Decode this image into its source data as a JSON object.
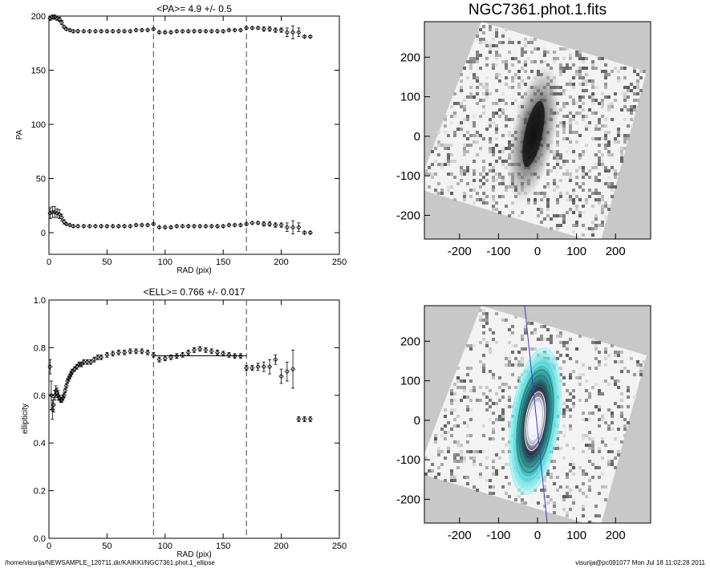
{
  "footer": {
    "left": "/home/visurija/NEWSAMPLE_120711.dir/KAIKKI/NGC7361.phot.1_ellipse",
    "right": "visurija@pc091077  Mon Jul 18 11:02:28 2011"
  },
  "image_panel": {
    "title": "NGC7361.phot.1.fits"
  },
  "chart_data": [
    {
      "type": "scatter",
      "title": "<PA>=   4.9 +/-   0.5",
      "xlabel": "RAD (pix)",
      "ylabel": "PA",
      "xlim": [
        0,
        250
      ],
      "ylim": [
        -20,
        200
      ],
      "xticks": [
        "0",
        "50",
        "100",
        "150",
        "200",
        "250"
      ],
      "yticks": [
        "0",
        "50",
        "100",
        "150",
        "200"
      ],
      "vlines": [
        90,
        170
      ],
      "series": [
        {
          "x": [
            1,
            3,
            5,
            7,
            9,
            11,
            13,
            15,
            18,
            21,
            25,
            30,
            35,
            40,
            45,
            50,
            55,
            60,
            65,
            70,
            75,
            80,
            85,
            90,
            95,
            100,
            105,
            110,
            115,
            120,
            125,
            130,
            135,
            140,
            145,
            150,
            155,
            160,
            165,
            170,
            175,
            180,
            185,
            190,
            195,
            200,
            205,
            210,
            215,
            220,
            225
          ],
          "y": [
            198,
            199,
            199,
            198,
            197,
            194,
            190,
            188,
            187,
            186,
            186,
            186,
            186,
            186,
            186,
            186,
            186,
            186,
            186,
            186,
            187,
            187,
            187,
            188,
            185,
            185,
            185,
            186,
            186,
            186,
            186,
            186,
            186,
            186,
            186,
            186,
            187,
            187,
            187,
            189,
            189,
            189,
            188,
            188,
            187,
            187,
            185,
            185,
            185,
            181,
            181
          ],
          "err": [
            2,
            2,
            2,
            2,
            2,
            2,
            1,
            1,
            1,
            1,
            1,
            1,
            1,
            1,
            1,
            1,
            1,
            1,
            1,
            1,
            1,
            1,
            1,
            1,
            1,
            1,
            1,
            1,
            1,
            1,
            1,
            1,
            1,
            1,
            1,
            1,
            1,
            1,
            1,
            1,
            1,
            1,
            2,
            2,
            2,
            2,
            4,
            6,
            4,
            1,
            1
          ]
        },
        {
          "x": [
            1,
            3,
            5,
            7,
            9,
            11,
            13,
            15,
            18,
            21,
            25,
            30,
            35,
            40,
            45,
            50,
            55,
            60,
            65,
            70,
            75,
            80,
            85,
            90,
            95,
            100,
            105,
            110,
            115,
            120,
            125,
            130,
            135,
            140,
            145,
            150,
            155,
            160,
            165,
            170,
            175,
            180,
            185,
            190,
            195,
            200,
            205,
            210,
            215,
            220,
            225
          ],
          "y": [
            18,
            19,
            19,
            18,
            17,
            14,
            10,
            8,
            7,
            6,
            6,
            6,
            6,
            6,
            6,
            6,
            6,
            6,
            6,
            6,
            7,
            7,
            7,
            8,
            5,
            5,
            5,
            6,
            6,
            6,
            6,
            6,
            6,
            6,
            6,
            6,
            7,
            7,
            7,
            8,
            9,
            9,
            8,
            8,
            7,
            7,
            5,
            5,
            5,
            0,
            0
          ],
          "err": [
            5,
            5,
            5,
            4,
            4,
            3,
            2,
            1,
            1,
            1,
            1,
            1,
            1,
            1,
            1,
            1,
            1,
            1,
            1,
            1,
            1,
            1,
            1,
            1,
            1,
            1,
            1,
            1,
            1,
            1,
            1,
            1,
            1,
            1,
            1,
            1,
            1,
            1,
            1,
            1,
            1,
            1,
            2,
            2,
            2,
            2,
            4,
            6,
            4,
            1,
            1
          ]
        }
      ]
    },
    {
      "type": "scatter",
      "title": "<ELL>= 0.766 +/-  0.017",
      "xlabel": "RAD (pix)",
      "ylabel": "ellipticity",
      "xlim": [
        0,
        250
      ],
      "ylim": [
        0,
        1
      ],
      "xticks": [
        "0",
        "50",
        "100",
        "150",
        "200",
        "250"
      ],
      "yticks": [
        "0.0",
        "0.2",
        "0.4",
        "0.6",
        "0.8",
        "1.0"
      ],
      "vlines": [
        90,
        170
      ],
      "hline": {
        "value": 0.766,
        "from": 90,
        "to": 170
      },
      "series": [
        {
          "x": [
            1,
            2,
            3,
            4,
            5,
            6,
            7,
            8,
            9,
            10,
            11,
            12,
            13,
            14,
            15,
            16,
            17,
            18,
            19,
            20,
            22,
            24,
            26,
            28,
            30,
            33,
            36,
            39,
            42,
            45,
            50,
            55,
            60,
            65,
            70,
            75,
            80,
            85,
            90,
            95,
            100,
            105,
            110,
            115,
            120,
            125,
            130,
            135,
            140,
            145,
            150,
            155,
            160,
            165,
            170,
            175,
            180,
            185,
            190,
            195,
            200,
            205,
            210,
            215,
            220,
            225
          ],
          "y": [
            0.72,
            0.6,
            0.54,
            0.56,
            0.6,
            0.62,
            0.61,
            0.6,
            0.59,
            0.58,
            0.58,
            0.59,
            0.6,
            0.62,
            0.64,
            0.66,
            0.67,
            0.68,
            0.69,
            0.7,
            0.71,
            0.72,
            0.73,
            0.73,
            0.74,
            0.74,
            0.74,
            0.75,
            0.76,
            0.76,
            0.77,
            0.775,
            0.78,
            0.78,
            0.785,
            0.785,
            0.785,
            0.78,
            0.77,
            0.75,
            0.755,
            0.76,
            0.765,
            0.77,
            0.78,
            0.79,
            0.795,
            0.79,
            0.785,
            0.78,
            0.775,
            0.77,
            0.765,
            0.765,
            0.715,
            0.715,
            0.72,
            0.72,
            0.72,
            0.75,
            0.68,
            0.7,
            0.71,
            0.5,
            0.5,
            0.5
          ],
          "err": [
            0.03,
            0.06,
            0.04,
            0.03,
            0.02,
            0.02,
            0.02,
            0.02,
            0.01,
            0.01,
            0.01,
            0.01,
            0.01,
            0.01,
            0.01,
            0.01,
            0.01,
            0.01,
            0.01,
            0.01,
            0.01,
            0.01,
            0.01,
            0.01,
            0.01,
            0.01,
            0.01,
            0.01,
            0.01,
            0.01,
            0.01,
            0.01,
            0.01,
            0.01,
            0.01,
            0.01,
            0.01,
            0.01,
            0.01,
            0.01,
            0.01,
            0.01,
            0.01,
            0.01,
            0.01,
            0.01,
            0.01,
            0.01,
            0.01,
            0.01,
            0.01,
            0.01,
            0.01,
            0.01,
            0.01,
            0.01,
            0.015,
            0.02,
            0.03,
            0.02,
            0.03,
            0.04,
            0.08,
            0.01,
            0.01,
            0.01
          ]
        }
      ]
    },
    {
      "type": "heatmap",
      "title": "NGC7361.phot.1.fits",
      "xlim": [
        -290,
        290
      ],
      "ylim": [
        -260,
        290
      ],
      "xticks": [
        "-200",
        "-100",
        "0",
        "100",
        "200"
      ],
      "yticks": [
        "-200",
        "-100",
        "0",
        "100",
        "200"
      ]
    },
    {
      "type": "heatmap",
      "title": "",
      "xlim": [
        -290,
        290
      ],
      "ylim": [
        -260,
        290
      ],
      "xticks": [
        "-200",
        "-100",
        "0",
        "100",
        "200"
      ],
      "yticks": [
        "-200",
        "-100",
        "0",
        "100",
        "200"
      ]
    }
  ]
}
